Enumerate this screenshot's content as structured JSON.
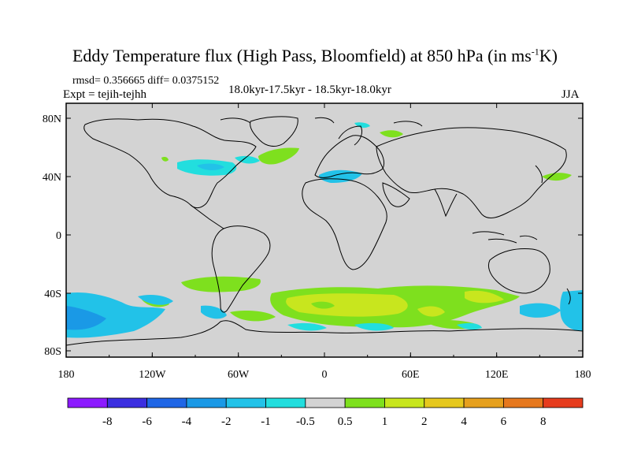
{
  "title": {
    "main": "Eddy Temperature flux (High Pass, Bloomfield) at 850 hPa (in ms",
    "sup": "-1",
    "end": "K)"
  },
  "stats": "rmsd= 0.356665 diff= 0.0375152",
  "expt": "Expt = tejih-tejhh",
  "period": "18.0kyr-17.5kyr - 18.5kyr-18.0kyr",
  "season": "JJA",
  "lat_labels": [
    "80N",
    "40N",
    "0",
    "40S",
    "80S"
  ],
  "lon_labels": [
    "180",
    "120W",
    "60W",
    "0",
    "60E",
    "120E",
    "180"
  ],
  "colorbar": {
    "labels": [
      "-8",
      "-6",
      "-4",
      "-2",
      "-1",
      "-0.5",
      "0.5",
      "1",
      "2",
      "4",
      "6",
      "8"
    ],
    "colors": [
      "#8c1aff",
      "#3b2ee0",
      "#1f66e6",
      "#1a99e6",
      "#22c2e8",
      "#22dede",
      "#d3d3d3",
      "#7ee01e",
      "#c8e61e",
      "#e6c81e",
      "#e6a01e",
      "#e6781e",
      "#e63c1e"
    ]
  },
  "map_colors": {
    "land_bg": "#d3d3d3",
    "coast": "#000000"
  }
}
